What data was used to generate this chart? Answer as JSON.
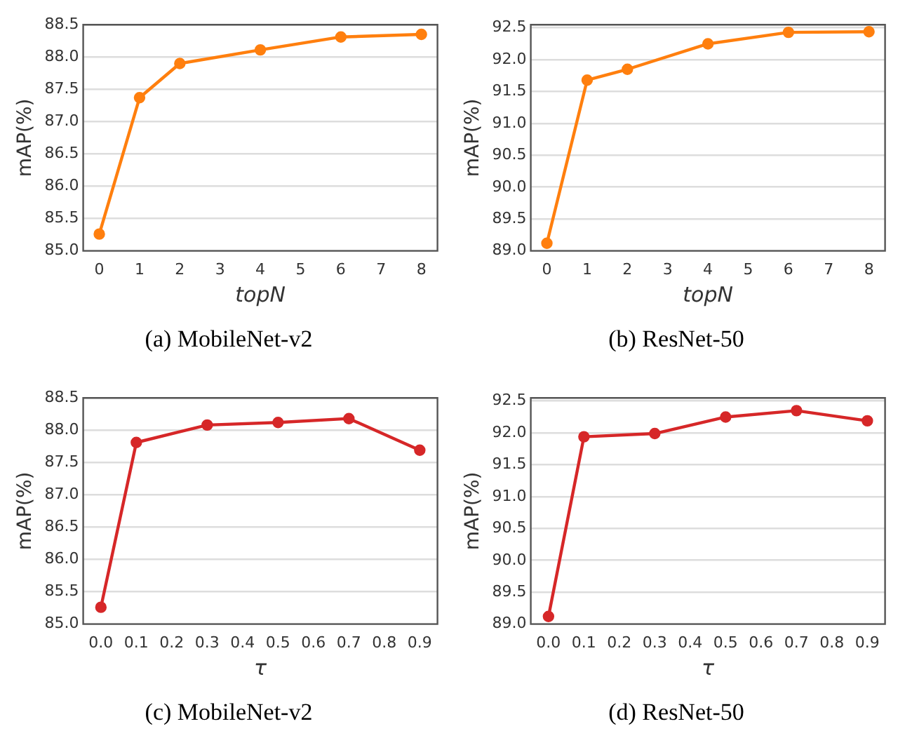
{
  "chart_data": [
    {
      "type": "line",
      "xlabel": "topN",
      "ylabel": "mAP(%)",
      "annotations": [
        "(a) MobileNet-v2"
      ],
      "grid": "y",
      "marker": "circle",
      "legend": false,
      "x": [
        0,
        1,
        2,
        4,
        6,
        8
      ],
      "series": [
        {
          "color": "#ff7f0e",
          "values": [
            85.26,
            87.37,
            87.9,
            88.11,
            88.31,
            88.35
          ]
        }
      ],
      "xlim": [
        -0.4,
        8.4
      ],
      "xticks": [
        0,
        1,
        2,
        3,
        4,
        5,
        6,
        7,
        8
      ],
      "ylim": [
        85.0,
        88.5
      ],
      "yticks": [
        {
          "value": 85,
          "label": "85.0"
        },
        85.5,
        {
          "value": 86,
          "label": "86.0"
        },
        86.5,
        {
          "value": 87,
          "label": "87.0"
        },
        87.5,
        {
          "value": 88,
          "label": "88.0"
        },
        88.5
      ]
    },
    {
      "type": "line",
      "xlabel": "topN",
      "ylabel": "mAP(%)",
      "annotations": [
        "(b) ResNet-50"
      ],
      "grid": "y",
      "marker": "circle",
      "legend": false,
      "x": [
        0,
        1,
        2,
        4,
        6,
        8
      ],
      "series": [
        {
          "color": "#ff7f0e",
          "values": [
            89.12,
            91.68,
            91.85,
            92.25,
            92.43,
            92.44
          ]
        }
      ],
      "xlim": [
        -0.4,
        8.4
      ],
      "xticks": [
        0,
        1,
        2,
        3,
        4,
        5,
        6,
        7,
        8
      ],
      "ylim": [
        89.0,
        92.55
      ],
      "yticks": [
        {
          "value": 89,
          "label": "89.0"
        },
        89.5,
        {
          "value": 90,
          "label": "90.0"
        },
        90.5,
        {
          "value": 91,
          "label": "91.0"
        },
        91.5,
        {
          "value": 92,
          "label": "92.0"
        },
        92.5
      ]
    },
    {
      "type": "line",
      "xlabel": "τ",
      "ylabel": "mAP(%)",
      "annotations": [
        "(c) MobileNet-v2"
      ],
      "grid": "y",
      "marker": "circle",
      "legend": false,
      "x": [
        0,
        0.1,
        0.3,
        0.5,
        0.7,
        0.9
      ],
      "series": [
        {
          "color": "#d62728",
          "values": [
            85.26,
            87.81,
            88.08,
            88.12,
            88.18,
            87.69
          ]
        }
      ],
      "xlim": [
        -0.05,
        0.95
      ],
      "xticks": [
        {
          "value": 0,
          "label": "0.0"
        },
        0.1,
        0.2,
        0.3,
        0.4,
        0.5,
        0.6,
        0.7,
        0.8,
        0.9
      ],
      "ylim": [
        85.0,
        88.5
      ],
      "yticks": [
        {
          "value": 85,
          "label": "85.0"
        },
        85.5,
        {
          "value": 86,
          "label": "86.0"
        },
        86.5,
        {
          "value": 87,
          "label": "87.0"
        },
        87.5,
        {
          "value": 88,
          "label": "88.0"
        },
        88.5
      ]
    },
    {
      "type": "line",
      "xlabel": "τ",
      "ylabel": "mAP(%)",
      "annotations": [
        "(d) ResNet-50"
      ],
      "grid": "y",
      "marker": "circle",
      "legend": false,
      "x": [
        0,
        0.1,
        0.3,
        0.5,
        0.7,
        0.9
      ],
      "series": [
        {
          "color": "#d62728",
          "values": [
            89.12,
            91.94,
            91.99,
            92.25,
            92.35,
            92.19
          ]
        }
      ],
      "xlim": [
        -0.05,
        0.95
      ],
      "xticks": [
        {
          "value": 0,
          "label": "0.0"
        },
        0.1,
        0.2,
        0.3,
        0.4,
        0.5,
        0.6,
        0.7,
        0.8,
        0.9
      ],
      "ylim": [
        89.0,
        92.55
      ],
      "yticks": [
        {
          "value": 89,
          "label": "89.0"
        },
        89.5,
        {
          "value": 90,
          "label": "90.0"
        },
        90.5,
        {
          "value": 91,
          "label": "91.0"
        },
        91.5,
        {
          "value": 92,
          "label": "92.0"
        },
        92.5
      ]
    }
  ]
}
